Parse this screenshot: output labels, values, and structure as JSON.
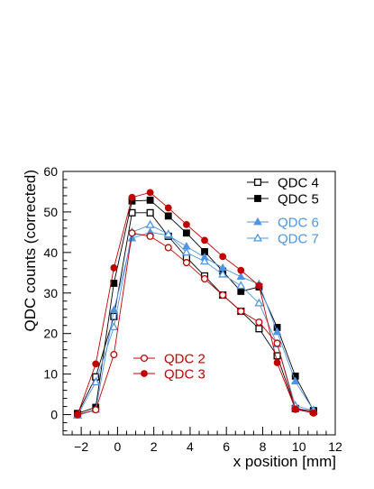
{
  "chart_data": {
    "type": "line",
    "xlabel": "x position  [mm]",
    "ylabel": "QDC counts (corrected)",
    "xlim": [
      -3,
      12
    ],
    "ylim": [
      -5,
      60
    ],
    "xticks": [
      -2,
      0,
      2,
      4,
      6,
      8,
      10,
      12
    ],
    "yticks": [
      0,
      10,
      20,
      30,
      40,
      50,
      60
    ],
    "grid": false,
    "x": [
      -2.2,
      -1.2,
      -0.2,
      0.8,
      1.8,
      2.8,
      3.8,
      4.8,
      5.8,
      6.8,
      7.8,
      8.8,
      9.8,
      10.8
    ],
    "series": [
      {
        "name": "QDC 4",
        "color": "#000000",
        "marker": "open-square",
        "values": [
          0.2,
          9.3,
          24.2,
          49.8,
          49.8,
          44.0,
          38.8,
          34.2,
          29.5,
          25.5,
          21.2,
          14.5,
          1.5,
          0.8
        ]
      },
      {
        "name": "QDC 5",
        "color": "#000000",
        "marker": "filled-square",
        "values": [
          0.3,
          1.8,
          32.4,
          52.7,
          52.9,
          49.0,
          44.8,
          40.2,
          35.4,
          30.4,
          31.5,
          21.5,
          9.5,
          1.0
        ]
      },
      {
        "name": "QDC 6",
        "color": "#4f95e0",
        "marker": "filled-triangle",
        "values": [
          -0.2,
          1.2,
          25.8,
          43.5,
          45.0,
          44.2,
          41.5,
          38.8,
          36.2,
          34.0,
          32.2,
          20.4,
          8.2,
          1.1
        ]
      },
      {
        "name": "QDC 7",
        "color": "#4f95e0",
        "marker": "open-triangle",
        "values": [
          -0.2,
          8.0,
          21.6,
          45.0,
          46.8,
          44.5,
          40.0,
          37.8,
          34.6,
          31.8,
          27.5,
          17.4,
          2.2,
          1.0
        ]
      },
      {
        "name": "QDC 2",
        "color": "#c00000",
        "marker": "open-circle",
        "values": [
          0.0,
          1.2,
          14.8,
          44.8,
          44.0,
          41.2,
          37.5,
          33.5,
          29.5,
          25.5,
          22.8,
          17.6,
          1.3,
          0.4
        ]
      },
      {
        "name": "QDC 3",
        "color": "#c00000",
        "marker": "filled-circle",
        "values": [
          0.0,
          12.5,
          36.2,
          53.6,
          54.8,
          51.0,
          46.9,
          43.0,
          39.0,
          35.6,
          31.8,
          12.8,
          1.4,
          0.4
        ]
      }
    ],
    "legends": [
      {
        "position": "top-right",
        "entries": [
          "QDC 4",
          "QDC 5",
          "QDC 6",
          "QDC 7"
        ]
      },
      {
        "position": "lower-left",
        "entries": [
          "QDC 2",
          "QDC 3"
        ]
      }
    ]
  }
}
